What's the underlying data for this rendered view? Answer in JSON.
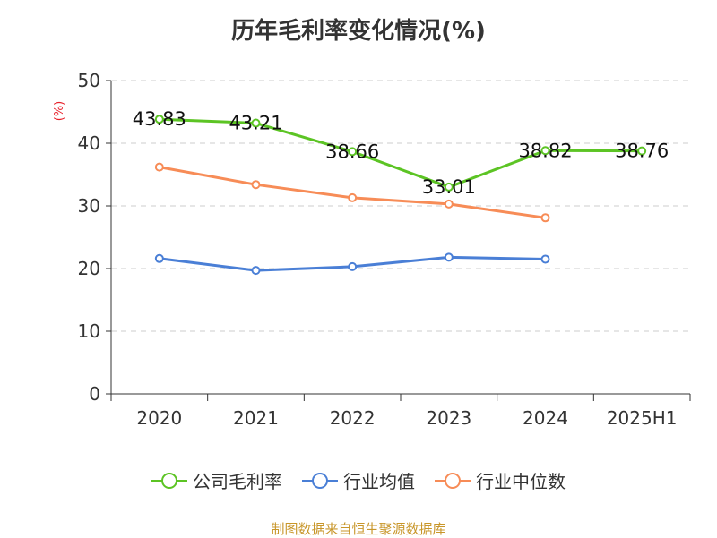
{
  "chart_data": {
    "type": "line",
    "title": "历年毛利率变化情况(%)",
    "ylabel": "(%)",
    "xlabel": "",
    "categories": [
      "2020",
      "2021",
      "2022",
      "2023",
      "2024",
      "2025H1"
    ],
    "ylim": [
      0,
      50
    ],
    "yticks": [
      0,
      10,
      20,
      30,
      40,
      50
    ],
    "grid": true,
    "legend_position": "bottom",
    "series": [
      {
        "name": "公司毛利率",
        "color": "#5cc424",
        "values": [
          43.83,
          43.21,
          38.66,
          33.01,
          38.82,
          38.76
        ],
        "labels": [
          "43.83",
          "43.21",
          "38.66",
          "33.01",
          "38.82",
          "38.76"
        ]
      },
      {
        "name": "行业均值",
        "color": "#4a7fd6",
        "values": [
          21.6,
          19.7,
          20.3,
          21.8,
          21.5,
          null
        ]
      },
      {
        "name": "行业中位数",
        "color": "#f78c57",
        "values": [
          36.2,
          33.4,
          31.3,
          30.3,
          28.1,
          null
        ]
      }
    ]
  },
  "source": "制图数据来自恒生聚源数据库"
}
